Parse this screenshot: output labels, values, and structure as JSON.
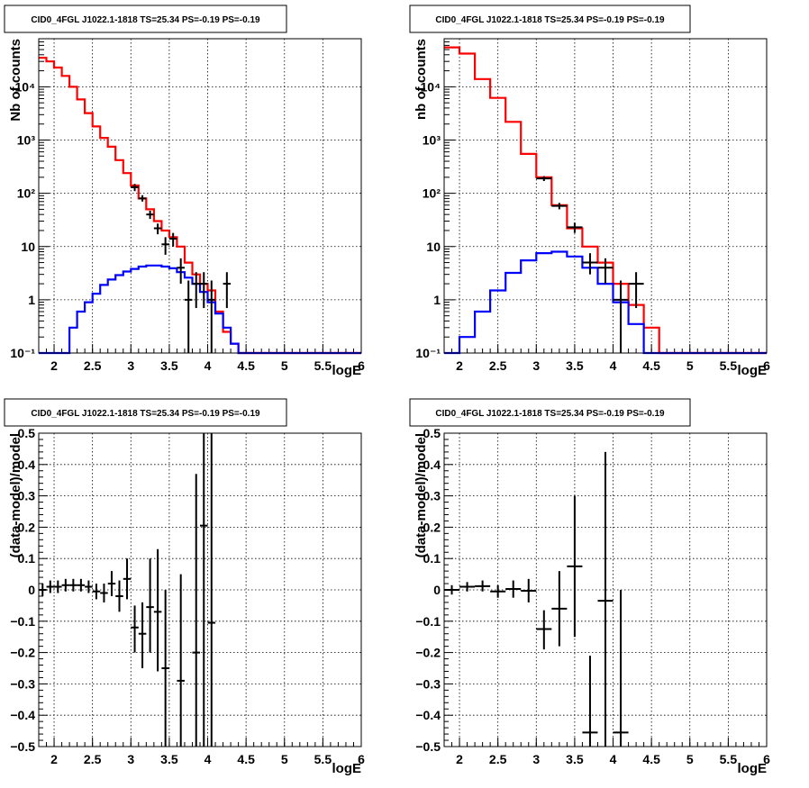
{
  "chart_data": [
    {
      "type": "line",
      "title": "CID0_4FGL J1022.1-1818 TS=25.34 PS=-0.19 PS=-0.19",
      "xlabel": "logE",
      "ylabel": "Nb of counts",
      "xlim": [
        1.8,
        6.0
      ],
      "ylim": [
        0.1,
        80000
      ],
      "yscale": "log",
      "grid": true,
      "x_ticks": [
        "2",
        "2.5",
        "3",
        "3.5",
        "4",
        "4.5",
        "5",
        "5.5",
        "6"
      ],
      "y_ticks": [
        "10⁻¹",
        "1",
        "10",
        "10²",
        "10³",
        "10⁴"
      ],
      "bin_edges": [
        1.8,
        1.9,
        2.0,
        2.1,
        2.2,
        2.3,
        2.4,
        2.5,
        2.6,
        2.7,
        2.8,
        2.9,
        3.0,
        3.1,
        3.2,
        3.3,
        3.4,
        3.5,
        3.6,
        3.7,
        3.8,
        3.9,
        4.0,
        4.1,
        4.2,
        4.3,
        4.4,
        4.5,
        4.6,
        4.7,
        4.8,
        4.9,
        5.0,
        5.1,
        5.2,
        5.3,
        5.4,
        5.5,
        5.6,
        5.7,
        5.8,
        5.9,
        6.0
      ],
      "series": [
        {
          "name": "",
          "color": "#ff0000",
          "values": [
            35000,
            30000,
            23000,
            16000,
            10000,
            5800,
            3200,
            1800,
            1100,
            750,
            420,
            240,
            140,
            80,
            50,
            30,
            20,
            15,
            10,
            5,
            3,
            2,
            1.5,
            0.6,
            0.25,
            0.15,
            0.1,
            0.1,
            0.1,
            0.1,
            0.1,
            0.1,
            0.1,
            0.1,
            0.1,
            0.1,
            0.1,
            0.1,
            0.1,
            0.1,
            0.1,
            0.1
          ]
        },
        {
          "name": "",
          "color": "#0000ff",
          "values": [
            0.1,
            0.1,
            0.1,
            0.1,
            0.3,
            0.6,
            0.9,
            1.3,
            1.9,
            2.4,
            2.9,
            3.4,
            3.8,
            4.2,
            4.4,
            4.4,
            4.2,
            3.9,
            3.3,
            2.6,
            2.0,
            1.4,
            0.9,
            0.55,
            0.3,
            0.15,
            0.1,
            0.1,
            0.1,
            0.1,
            0.1,
            0.1,
            0.1,
            0.1,
            0.1,
            0.1,
            0.1,
            0.1,
            0.1,
            0.1,
            0.1,
            0.1
          ]
        },
        {
          "name": "",
          "color": "#000000",
          "type": "errorbar",
          "points": [
            {
              "x": 3.05,
              "y": 130,
              "ylo": 110,
              "yhi": 150
            },
            {
              "x": 3.15,
              "y": 80,
              "ylo": 70,
              "yhi": 92
            },
            {
              "x": 3.25,
              "y": 40,
              "ylo": 33,
              "yhi": 47
            },
            {
              "x": 3.35,
              "y": 22,
              "ylo": 17,
              "yhi": 27
            },
            {
              "x": 3.45,
              "y": 11,
              "ylo": 7,
              "yhi": 15
            },
            {
              "x": 3.55,
              "y": 14,
              "ylo": 10,
              "yhi": 18
            },
            {
              "x": 3.65,
              "y": 4,
              "ylo": 2,
              "yhi": 6
            },
            {
              "x": 3.75,
              "y": 1,
              "ylo": 0.1,
              "yhi": 2.3
            },
            {
              "x": 3.85,
              "y": 2,
              "ylo": 0.7,
              "yhi": 3.3
            },
            {
              "x": 3.95,
              "y": 2,
              "ylo": 0.7,
              "yhi": 3.3
            },
            {
              "x": 4.05,
              "y": 1,
              "ylo": 0.1,
              "yhi": 2.3
            },
            {
              "x": 4.25,
              "y": 2,
              "ylo": 0.7,
              "yhi": 3.3
            }
          ]
        }
      ]
    },
    {
      "type": "line",
      "title": "CID0_4FGL J1022.1-1818 TS=25.34 PS=-0.19 PS=-0.19",
      "xlabel": "logE",
      "ylabel": "nb of counts",
      "xlim": [
        1.8,
        6.0
      ],
      "ylim": [
        0.1,
        80000
      ],
      "yscale": "log",
      "grid": true,
      "x_ticks": [
        "2",
        "2.5",
        "3",
        "3.5",
        "4",
        "4.5",
        "5",
        "5.5",
        "6"
      ],
      "y_ticks": [
        "10⁻¹",
        "1",
        "10",
        "10²",
        "10³",
        "10⁴"
      ],
      "bin_edges": [
        1.8,
        2.0,
        2.2,
        2.4,
        2.6,
        2.8,
        3.0,
        3.2,
        3.4,
        3.6,
        3.8,
        4.0,
        4.2,
        4.4,
        4.6,
        4.8,
        5.0,
        5.2,
        5.4,
        5.6,
        5.8,
        6.0
      ],
      "series": [
        {
          "name": "",
          "color": "#ff0000",
          "values": [
            55000,
            42000,
            14000,
            6200,
            2200,
            550,
            200,
            60,
            22,
            10,
            5,
            2,
            0.8,
            0.3,
            0.1,
            0.1,
            0.1,
            0.1,
            0.1,
            0.1,
            0.1
          ]
        },
        {
          "name": "",
          "color": "#0000ff",
          "values": [
            0.1,
            0.2,
            0.6,
            1.5,
            3.2,
            5.5,
            7.5,
            8.0,
            6.5,
            4.0,
            2.0,
            0.9,
            0.35,
            0.1,
            0.1,
            0.1,
            0.1,
            0.1,
            0.1,
            0.1,
            0.1
          ]
        },
        {
          "name": "",
          "color": "#000000",
          "type": "errorbar",
          "points": [
            {
              "x": 3.1,
              "y": 190,
              "ylo": 170,
              "yhi": 210
            },
            {
              "x": 3.3,
              "y": 58,
              "ylo": 50,
              "yhi": 66
            },
            {
              "x": 3.5,
              "y": 23,
              "ylo": 18,
              "yhi": 28
            },
            {
              "x": 3.7,
              "y": 5,
              "ylo": 3,
              "yhi": 7.5
            },
            {
              "x": 3.9,
              "y": 4,
              "ylo": 2,
              "yhi": 6
            },
            {
              "x": 4.1,
              "y": 1,
              "ylo": 0.1,
              "yhi": 2.3
            },
            {
              "x": 4.3,
              "y": 2,
              "ylo": 0.7,
              "yhi": 3.3
            }
          ]
        }
      ]
    },
    {
      "type": "scatter",
      "title": "CID0_4FGL J1022.1-1818 TS=25.34 PS=-0.19 PS=-0.19",
      "xlabel": "logE",
      "ylabel": "(data-model)/model",
      "xlim": [
        1.8,
        6.0
      ],
      "ylim": [
        -0.5,
        0.5
      ],
      "grid": true,
      "x_ticks": [
        "2",
        "2.5",
        "3",
        "3.5",
        "4",
        "4.5",
        "5",
        "5.5",
        "6"
      ],
      "y_ticks": [
        "−0.5",
        "−0.4",
        "−0.3",
        "−0.2",
        "−0.1",
        "0",
        "0.1",
        "0.2",
        "0.3",
        "0.4",
        "0.5"
      ],
      "xerr": 0.05,
      "points": [
        {
          "x": 1.85,
          "y": 0.0,
          "ylo": -0.02,
          "yhi": 0.02
        },
        {
          "x": 1.95,
          "y": 0.01,
          "ylo": -0.01,
          "yhi": 0.03
        },
        {
          "x": 2.05,
          "y": 0.01,
          "ylo": -0.01,
          "yhi": 0.03
        },
        {
          "x": 2.15,
          "y": 0.015,
          "ylo": -0.005,
          "yhi": 0.035
        },
        {
          "x": 2.25,
          "y": 0.015,
          "ylo": -0.005,
          "yhi": 0.035
        },
        {
          "x": 2.35,
          "y": 0.015,
          "ylo": -0.005,
          "yhi": 0.035
        },
        {
          "x": 2.45,
          "y": 0.01,
          "ylo": -0.01,
          "yhi": 0.03
        },
        {
          "x": 2.55,
          "y": -0.005,
          "ylo": -0.03,
          "yhi": 0.02
        },
        {
          "x": 2.65,
          "y": -0.01,
          "ylo": -0.04,
          "yhi": 0.02
        },
        {
          "x": 2.75,
          "y": 0.02,
          "ylo": -0.02,
          "yhi": 0.06
        },
        {
          "x": 2.85,
          "y": -0.02,
          "ylo": -0.07,
          "yhi": 0.03
        },
        {
          "x": 2.95,
          "y": 0.035,
          "ylo": -0.03,
          "yhi": 0.1
        },
        {
          "x": 3.05,
          "y": -0.12,
          "ylo": -0.2,
          "yhi": -0.05
        },
        {
          "x": 3.15,
          "y": -0.14,
          "ylo": -0.25,
          "yhi": -0.04
        },
        {
          "x": 3.25,
          "y": -0.055,
          "ylo": -0.2,
          "yhi": 0.1
        },
        {
          "x": 3.35,
          "y": -0.07,
          "ylo": -0.26,
          "yhi": 0.13
        },
        {
          "x": 3.45,
          "y": -0.25,
          "ylo": -0.5,
          "yhi": 0.0
        },
        {
          "x": 3.65,
          "y": -0.29,
          "ylo": -0.5,
          "yhi": 0.05
        },
        {
          "x": 3.85,
          "y": -0.2,
          "ylo": -0.5,
          "yhi": 0.37
        },
        {
          "x": 3.95,
          "y": 0.205,
          "ylo": -0.5,
          "yhi": 0.5
        },
        {
          "x": 4.05,
          "y": -0.105,
          "ylo": -0.5,
          "yhi": 0.5
        }
      ]
    },
    {
      "type": "scatter",
      "title": "CID0_4FGL J1022.1-1818 TS=25.34 PS=-0.19 PS=-0.19",
      "xlabel": "logE",
      "ylabel": "(data-model)/model",
      "xlim": [
        1.8,
        6.0
      ],
      "ylim": [
        -0.5,
        0.5
      ],
      "grid": true,
      "x_ticks": [
        "2",
        "2.5",
        "3",
        "3.5",
        "4",
        "4.5",
        "5",
        "5.5",
        "6"
      ],
      "y_ticks": [
        "−0.5",
        "−0.4",
        "−0.3",
        "−0.2",
        "−0.1",
        "0",
        "0.1",
        "0.2",
        "0.3",
        "0.4",
        "0.5"
      ],
      "xerr": 0.1,
      "points": [
        {
          "x": 1.9,
          "y": 0.0,
          "ylo": -0.015,
          "yhi": 0.015
        },
        {
          "x": 2.1,
          "y": 0.01,
          "ylo": -0.005,
          "yhi": 0.025
        },
        {
          "x": 2.3,
          "y": 0.012,
          "ylo": -0.005,
          "yhi": 0.03
        },
        {
          "x": 2.5,
          "y": -0.005,
          "ylo": -0.025,
          "yhi": 0.015
        },
        {
          "x": 2.7,
          "y": 0.003,
          "ylo": -0.025,
          "yhi": 0.03
        },
        {
          "x": 2.9,
          "y": -0.003,
          "ylo": -0.04,
          "yhi": 0.035
        },
        {
          "x": 3.1,
          "y": -0.125,
          "ylo": -0.19,
          "yhi": -0.065
        },
        {
          "x": 3.3,
          "y": -0.06,
          "ylo": -0.18,
          "yhi": 0.06
        },
        {
          "x": 3.5,
          "y": 0.075,
          "ylo": -0.15,
          "yhi": 0.3
        },
        {
          "x": 3.7,
          "y": -0.455,
          "ylo": -0.5,
          "yhi": -0.21
        },
        {
          "x": 3.9,
          "y": -0.035,
          "ylo": -0.5,
          "yhi": 0.44
        },
        {
          "x": 4.1,
          "y": -0.455,
          "ylo": -0.5,
          "yhi": 0.0
        }
      ]
    }
  ]
}
